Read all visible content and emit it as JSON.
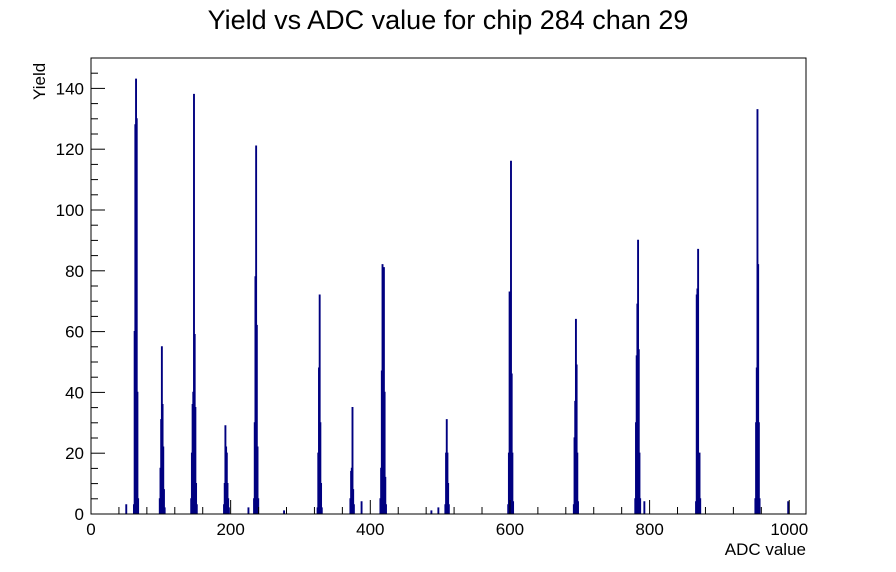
{
  "chart_data": {
    "type": "histogram",
    "title": "Yield vs ADC value for chip 284 chan 29",
    "xlabel": "ADC value",
    "ylabel": "Yield",
    "xlim": [
      0,
      1024
    ],
    "ylim": [
      0,
      150
    ],
    "x_ticks": [
      0,
      200,
      400,
      600,
      800,
      1000
    ],
    "y_ticks": [
      0,
      20,
      40,
      60,
      80,
      100,
      120,
      140
    ],
    "bin_width": 1,
    "line_color": "#000080",
    "grid": false,
    "legend": "none",
    "bins": [
      {
        "x": 50,
        "y": 3
      },
      {
        "x": 61,
        "y": 3
      },
      {
        "x": 62,
        "y": 60
      },
      {
        "x": 63,
        "y": 128
      },
      {
        "x": 64,
        "y": 143
      },
      {
        "x": 65,
        "y": 130
      },
      {
        "x": 66,
        "y": 40
      },
      {
        "x": 67,
        "y": 5
      },
      {
        "x": 98,
        "y": 5
      },
      {
        "x": 99,
        "y": 15
      },
      {
        "x": 100,
        "y": 31
      },
      {
        "x": 101,
        "y": 55
      },
      {
        "x": 102,
        "y": 36
      },
      {
        "x": 103,
        "y": 22
      },
      {
        "x": 104,
        "y": 8
      },
      {
        "x": 105,
        "y": 2
      },
      {
        "x": 143,
        "y": 5
      },
      {
        "x": 144,
        "y": 20
      },
      {
        "x": 145,
        "y": 36
      },
      {
        "x": 146,
        "y": 40
      },
      {
        "x": 147,
        "y": 138
      },
      {
        "x": 148,
        "y": 59
      },
      {
        "x": 149,
        "y": 35
      },
      {
        "x": 150,
        "y": 10
      },
      {
        "x": 151,
        "y": 3
      },
      {
        "x": 190,
        "y": 3
      },
      {
        "x": 191,
        "y": 10
      },
      {
        "x": 192,
        "y": 29
      },
      {
        "x": 193,
        "y": 22
      },
      {
        "x": 194,
        "y": 20
      },
      {
        "x": 195,
        "y": 10
      },
      {
        "x": 196,
        "y": 5
      },
      {
        "x": 197,
        "y": 2
      },
      {
        "x": 225,
        "y": 2
      },
      {
        "x": 233,
        "y": 5
      },
      {
        "x": 234,
        "y": 30
      },
      {
        "x": 235,
        "y": 78
      },
      {
        "x": 236,
        "y": 121
      },
      {
        "x": 237,
        "y": 62
      },
      {
        "x": 238,
        "y": 22
      },
      {
        "x": 239,
        "y": 5
      },
      {
        "x": 276,
        "y": 1
      },
      {
        "x": 324,
        "y": 2
      },
      {
        "x": 325,
        "y": 20
      },
      {
        "x": 326,
        "y": 48
      },
      {
        "x": 327,
        "y": 72
      },
      {
        "x": 328,
        "y": 30
      },
      {
        "x": 329,
        "y": 10
      },
      {
        "x": 330,
        "y": 2
      },
      {
        "x": 371,
        "y": 5
      },
      {
        "x": 372,
        "y": 14
      },
      {
        "x": 373,
        "y": 15
      },
      {
        "x": 374,
        "y": 35
      },
      {
        "x": 375,
        "y": 8
      },
      {
        "x": 376,
        "y": 3
      },
      {
        "x": 387,
        "y": 4
      },
      {
        "x": 414,
        "y": 5
      },
      {
        "x": 415,
        "y": 15
      },
      {
        "x": 416,
        "y": 47
      },
      {
        "x": 417,
        "y": 82
      },
      {
        "x": 418,
        "y": 60
      },
      {
        "x": 419,
        "y": 81
      },
      {
        "x": 420,
        "y": 40
      },
      {
        "x": 421,
        "y": 12
      },
      {
        "x": 422,
        "y": 3
      },
      {
        "x": 487,
        "y": 1
      },
      {
        "x": 497,
        "y": 2
      },
      {
        "x": 507,
        "y": 3
      },
      {
        "x": 508,
        "y": 20
      },
      {
        "x": 509,
        "y": 31
      },
      {
        "x": 510,
        "y": 20
      },
      {
        "x": 511,
        "y": 10
      },
      {
        "x": 512,
        "y": 3
      },
      {
        "x": 597,
        "y": 3
      },
      {
        "x": 598,
        "y": 20
      },
      {
        "x": 599,
        "y": 73
      },
      {
        "x": 600,
        "y": 21
      },
      {
        "x": 601,
        "y": 116
      },
      {
        "x": 602,
        "y": 46
      },
      {
        "x": 603,
        "y": 20
      },
      {
        "x": 604,
        "y": 4
      },
      {
        "x": 691,
        "y": 3
      },
      {
        "x": 692,
        "y": 25
      },
      {
        "x": 693,
        "y": 37
      },
      {
        "x": 694,
        "y": 64
      },
      {
        "x": 695,
        "y": 49
      },
      {
        "x": 696,
        "y": 20
      },
      {
        "x": 697,
        "y": 4
      },
      {
        "x": 779,
        "y": 5
      },
      {
        "x": 780,
        "y": 30
      },
      {
        "x": 781,
        "y": 52
      },
      {
        "x": 782,
        "y": 69
      },
      {
        "x": 783,
        "y": 90
      },
      {
        "x": 784,
        "y": 54
      },
      {
        "x": 785,
        "y": 20
      },
      {
        "x": 786,
        "y": 5
      },
      {
        "x": 792,
        "y": 4
      },
      {
        "x": 866,
        "y": 4
      },
      {
        "x": 867,
        "y": 72
      },
      {
        "x": 868,
        "y": 74
      },
      {
        "x": 869,
        "y": 87
      },
      {
        "x": 870,
        "y": 14
      },
      {
        "x": 871,
        "y": 20
      },
      {
        "x": 872,
        "y": 5
      },
      {
        "x": 951,
        "y": 5
      },
      {
        "x": 952,
        "y": 30
      },
      {
        "x": 953,
        "y": 48
      },
      {
        "x": 954,
        "y": 133
      },
      {
        "x": 955,
        "y": 82
      },
      {
        "x": 956,
        "y": 30
      },
      {
        "x": 957,
        "y": 5
      },
      {
        "x": 998,
        "y": 4
      }
    ]
  }
}
